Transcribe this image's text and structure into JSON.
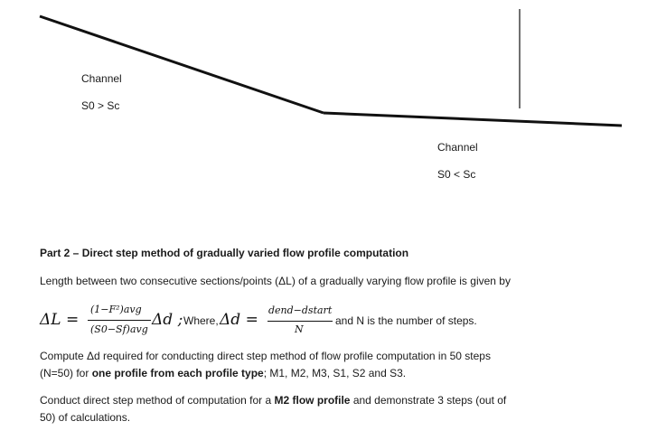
{
  "diagram": {
    "channel_steep": {
      "title": "Channel",
      "condition": "S0 > Sc"
    },
    "channel_mild": {
      "title": "Channel",
      "condition": "S0 < Sc"
    }
  },
  "section": {
    "heading": "Part 2 – Direct step method of gradually varied flow profile computation",
    "intro": "Length between two consecutive sections/points (ΔL) of a gradually varying flow profile is given by"
  },
  "equation": {
    "lhs": "ΔL =",
    "frac1_num": "(1−F²)avg",
    "frac1_den": "(S0−Sf)avg",
    "delta_d": "Δd ;",
    "where": "Where,",
    "delta_d_eq": "Δd =",
    "frac2_num": "dend−dstart",
    "frac2_den": "N",
    "tail": "and N is the number of steps."
  },
  "task1": {
    "line1": "Compute Δd required for conducting direct step method of flow profile computation in 50 steps",
    "line2_a": "(N=50)  for ",
    "line2_bold": "one profile from each profile type",
    "line2_b": "; M1, M2, M3, S1, S2 and S3."
  },
  "task2": {
    "line1_a": "Conduct direct step method of computation for a ",
    "line1_bold": "M2 flow profile",
    "line1_b": " and demonstrate 3 steps (out of",
    "line2": "50) of calculations."
  }
}
